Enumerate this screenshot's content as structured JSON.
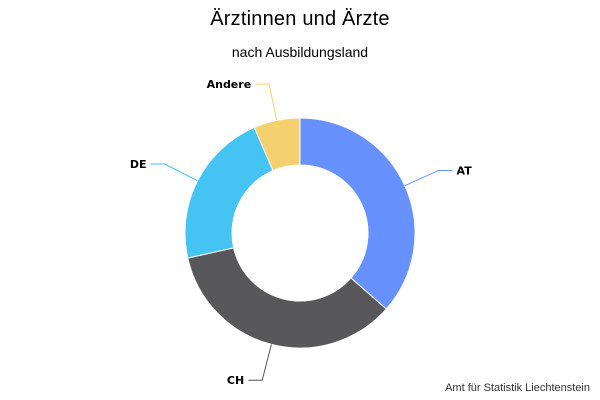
{
  "title": "Ärztinnen und Ärzte",
  "subtitle": "nach Ausbildungsland",
  "credits": "Amt für Statistik Liechtenstein",
  "chart_data": {
    "type": "pie",
    "variant": "donut",
    "title": "Ärztinnen und Ärzte",
    "subtitle": "nach Ausbildungsland",
    "legend": "none",
    "start_angle_deg": 0,
    "slices": [
      {
        "label": "AT",
        "value": 36.5,
        "color": "#6691FF"
      },
      {
        "label": "CH",
        "value": 35.0,
        "color": "#58585A"
      },
      {
        "label": "DE",
        "value": 22.0,
        "color": "#45C3F2"
      },
      {
        "label": "Andere",
        "value": 6.5,
        "color": "#F4D06F"
      }
    ]
  }
}
